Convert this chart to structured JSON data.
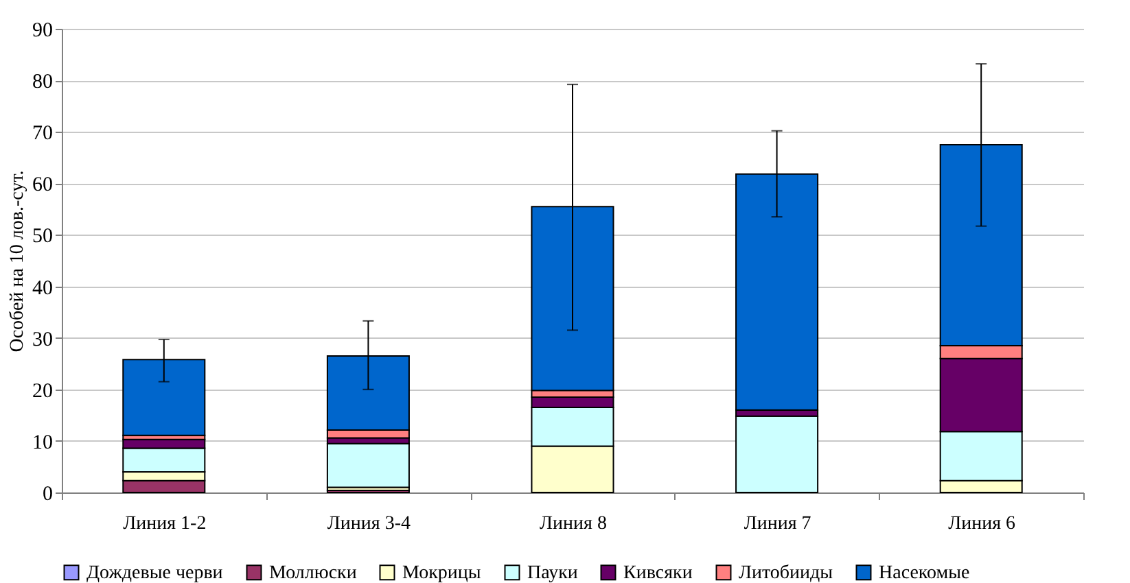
{
  "chart_data": {
    "type": "bar",
    "stacked": true,
    "ylabel": "Особей на 10 лов.-сут.",
    "categories": [
      "Линия 1-2",
      "Линия 3-4",
      "Линия 8",
      "Линия 7",
      "Линия 6"
    ],
    "series": [
      {
        "name": "Дождевые черви",
        "color": "#9999ff",
        "values": [
          0,
          0,
          0,
          0,
          0
        ]
      },
      {
        "name": "Моллюски",
        "color": "#993366",
        "values": [
          2.3,
          0.4,
          0,
          0,
          null
        ]
      },
      {
        "name": "Мокрицы",
        "color": "#ffffcc",
        "values": [
          1.7,
          0.6,
          9.0,
          0,
          2.3
        ]
      },
      {
        "name": "Пауки",
        "color": "#ccffff",
        "values": [
          4.6,
          8.5,
          7.5,
          14.8,
          9.5
        ]
      },
      {
        "name": "Кивсяки",
        "color": "#660066",
        "values": [
          1.7,
          1.1,
          2.0,
          1.2,
          14.2
        ]
      },
      {
        "name": "Литобииды",
        "color": "#ff8080",
        "values": [
          0.8,
          1.5,
          1.3,
          0,
          2.5
        ]
      },
      {
        "name": "Насекомые",
        "color": "#0066cc",
        "values": [
          14.7,
          14.4,
          35.7,
          45.8,
          39.0
        ],
        "errors": [
          [
            21.5,
            29.7
          ],
          [
            20.0,
            33.3
          ],
          [
            31.5,
            79.2
          ],
          [
            53.5,
            70.2
          ],
          [
            51.7,
            83.2
          ]
        ]
      }
    ],
    "ylim": [
      0,
      90
    ],
    "yticks": [
      0,
      10,
      20,
      30,
      40,
      50,
      60,
      70,
      80,
      90
    ],
    "grid": "y",
    "legend": "bottom"
  }
}
